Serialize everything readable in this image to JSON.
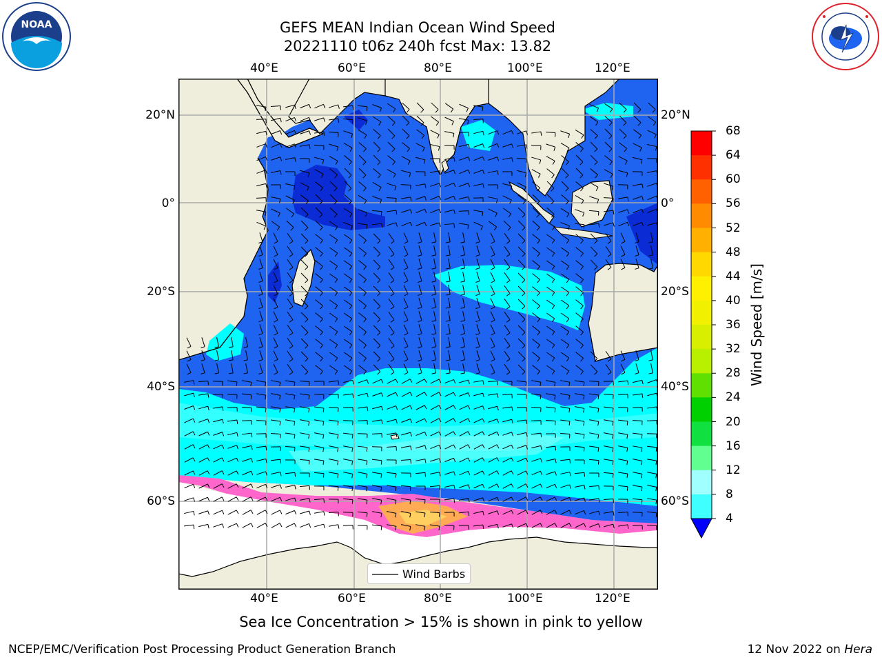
{
  "title": {
    "line1": "GEFS MEAN Indian Ocean Wind Speed",
    "line2": "20221110 t06z 240h fcst   Max: 13.82"
  },
  "axes": {
    "lon_labels": [
      "40°E",
      "60°E",
      "80°E",
      "100°E",
      "120°E"
    ],
    "lat_labels_left": [
      "20°N",
      "0°",
      "20°S",
      "40°S",
      "60°S"
    ],
    "lat_labels_right": [
      "20°N",
      "0°",
      "20°S",
      "40°S",
      "60°S"
    ]
  },
  "colorbar": {
    "label": "Wind Speed [m/s]",
    "ticks": [
      "68",
      "64",
      "60",
      "56",
      "52",
      "48",
      "44",
      "40",
      "36",
      "32",
      "28",
      "24",
      "20",
      "16",
      "12",
      "8",
      "4"
    ],
    "colors": [
      "#ff0000",
      "#ff3000",
      "#ff6000",
      "#ff8c00",
      "#ffb000",
      "#ffd800",
      "#fff000",
      "#f0f000",
      "#d8f000",
      "#b8f000",
      "#60e000",
      "#00d000",
      "#10e040",
      "#60ff90",
      "#a0ffff",
      "#40ffff",
      "#00ffff",
      "#0090ff"
    ],
    "extend_color": "#0000ff"
  },
  "map": {
    "legend_label": "Wind Barbs",
    "note": "Sea Ice Concentration > 15% is shown in pink to yellow",
    "land_color": "#efeedd",
    "ocean_colors": {
      "low": "#1e64f0",
      "mid": "#00ffff",
      "very_low": "#0b2bd4",
      "ice": "#ff66cc"
    }
  },
  "footer": {
    "left": "NCEP/EMC/Verification Post Processing Product Generation Branch",
    "date": "12 Nov 2022 on ",
    "host": "Hera"
  },
  "logos": {
    "noaa_text": "NOAA",
    "noaa_ring": "NATIONAL OCEANIC AND ATMOSPHERIC ADMINISTRATION · U.S. DEPARTMENT OF COMMERCE",
    "nws_ring": "NATIONAL WEATHER SERVICE"
  }
}
